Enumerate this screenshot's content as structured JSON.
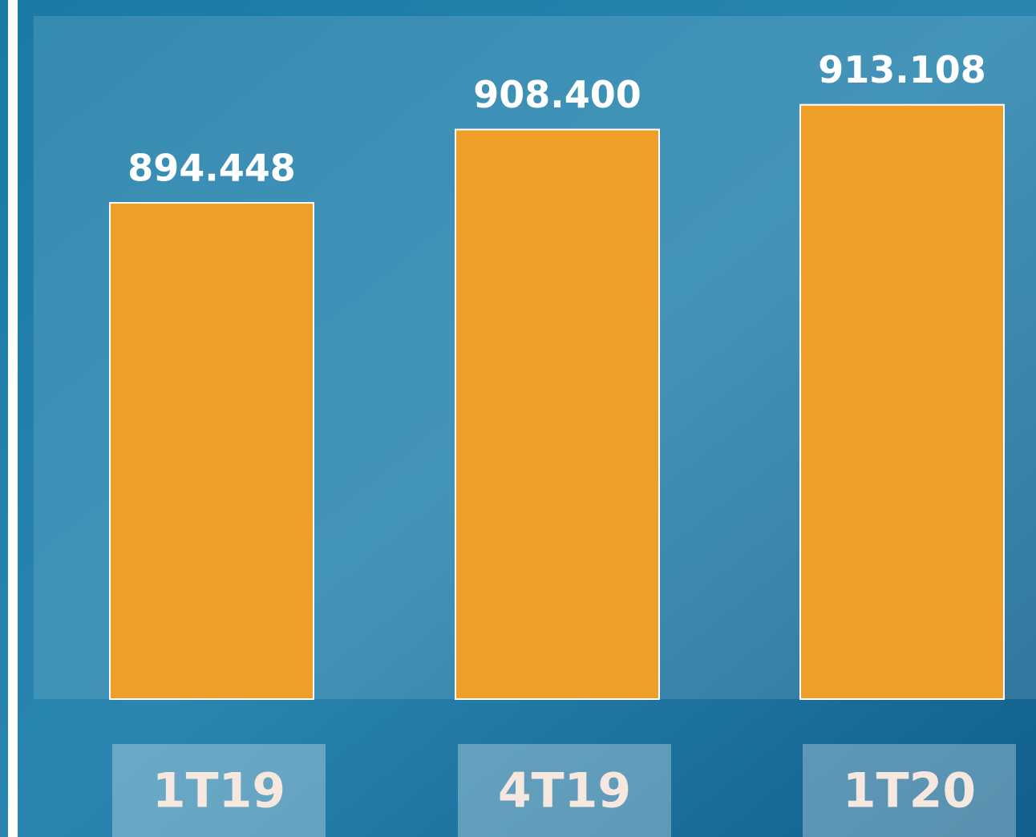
{
  "chart_data": {
    "type": "bar",
    "categories": [
      "1T19",
      "4T19",
      "1T20"
    ],
    "values": [
      894448,
      908400,
      913108
    ],
    "value_labels": [
      "894.448",
      "908.400",
      "913.108"
    ],
    "color": "#ee9f27",
    "ylim": [
      800000,
      930000
    ]
  }
}
